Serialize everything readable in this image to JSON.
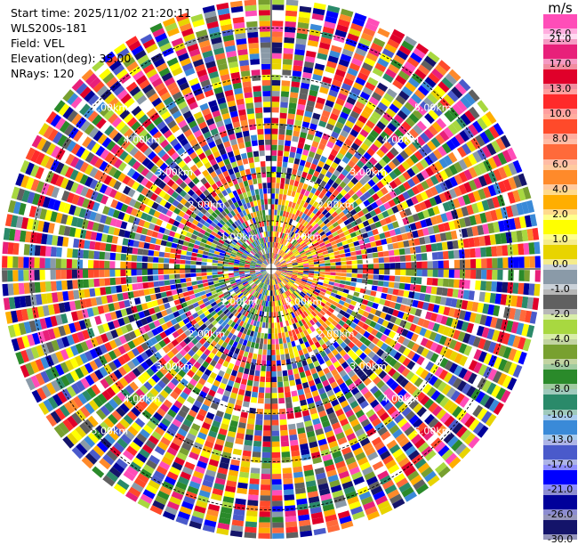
{
  "header": {
    "start_time": "Start time: 2025/11/02 21:20:11",
    "station": "WLS200s-181",
    "field": "Field: VEL",
    "elevation": "Elevation(deg): 35.00",
    "nrays": "NRays: 120"
  },
  "colorbar": {
    "unit": "m/s",
    "ticks": [
      "26.0",
      "21.0",
      "17.0",
      "13.0",
      "10.0",
      "8.0",
      "6.0",
      "4.0",
      "2.0",
      "1.0",
      "0.0",
      "-1.0",
      "-2.0",
      "-4.0",
      "-6.0",
      "-8.0",
      "-10.0",
      "-13.0",
      "-17.0",
      "-21.0",
      "-26.0",
      "-30.0"
    ],
    "colors": [
      "#ff4db8",
      "#e8207a",
      "#e0002a",
      "#ff2a2a",
      "#ff4a2a",
      "#ff6a3a",
      "#ff8a2a",
      "#ffae00",
      "#ffff00",
      "#e8d400",
      "#8a9aa8",
      "#606060",
      "#a8d840",
      "#78a030",
      "#2a8a2a",
      "#2a8a6a",
      "#3a8ad8",
      "#4a5acb",
      "#0000ff",
      "#00009a",
      "#14146a"
    ]
  },
  "chart_data": {
    "type": "heatmap",
    "subtype": "polar PPI (plan position indicator)",
    "field": "VEL",
    "units": "m/s",
    "elevation_deg": 35.0,
    "n_rays": 120,
    "range_rings_km": [
      1.0,
      2.0,
      3.0,
      4.0,
      5.0
    ],
    "range_labels": [
      "1.00km",
      "2.00km",
      "3.00km",
      "4.00km",
      "5.00km"
    ],
    "max_range_km": 5.6,
    "color_scale": {
      "bounds": [
        26.0,
        21.0,
        17.0,
        13.0,
        10.0,
        8.0,
        6.0,
        4.0,
        2.0,
        1.0,
        0.0,
        -1.0,
        -2.0,
        -4.0,
        -6.0,
        -8.0,
        -10.0,
        -13.0,
        -17.0,
        -21.0,
        -26.0,
        -30.0
      ]
    },
    "grid": true,
    "notes": "Velocity field appears as near-random noise over the whole domain; positive (orange/yellow) bias east of center at short range, negative (blue/green) bias west of center at short range."
  }
}
